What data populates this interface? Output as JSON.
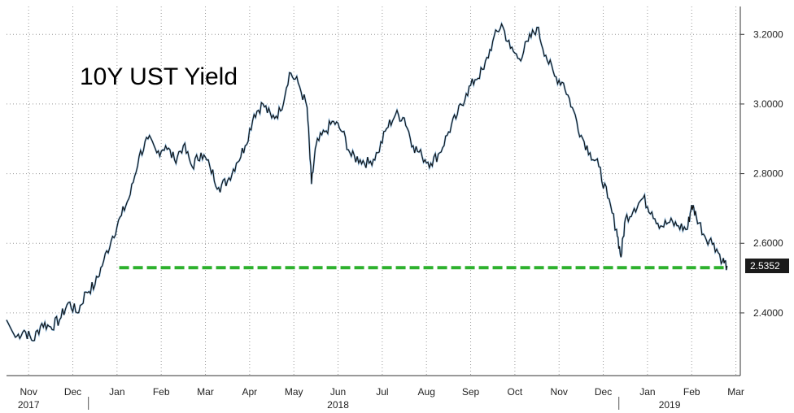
{
  "chart_data": {
    "type": "line",
    "title": "10Y UST Yield",
    "xlabel": "",
    "ylabel": "",
    "ylim": [
      2.22,
      3.28
    ],
    "y_ticks": [
      "3.2000",
      "3.0000",
      "2.8000",
      "2.6000",
      "2.4000"
    ],
    "x_months": [
      {
        "label": "Nov",
        "index": 0
      },
      {
        "label": "Dec",
        "index": 1
      },
      {
        "label": "Jan",
        "index": 2
      },
      {
        "label": "Feb",
        "index": 3
      },
      {
        "label": "Mar",
        "index": 4
      },
      {
        "label": "Apr",
        "index": 5
      },
      {
        "label": "May",
        "index": 6
      },
      {
        "label": "Jun",
        "index": 7
      },
      {
        "label": "Jul",
        "index": 8
      },
      {
        "label": "Aug",
        "index": 9
      },
      {
        "label": "Sep",
        "index": 10
      },
      {
        "label": "Oct",
        "index": 11
      },
      {
        "label": "Nov",
        "index": 12
      },
      {
        "label": "Dec",
        "index": 13
      },
      {
        "label": "Jan",
        "index": 14
      },
      {
        "label": "Feb",
        "index": 15
      },
      {
        "label": "Mar",
        "index": 16
      }
    ],
    "x_years": [
      {
        "label": "2017",
        "month_index": 0.5
      },
      {
        "label": "2018",
        "month_index": 7.5
      },
      {
        "label": "2019",
        "month_index": 15
      }
    ],
    "series": [
      {
        "values": [
          [
            0.0,
            2.38
          ],
          [
            0.2,
            2.33
          ],
          [
            0.4,
            2.35
          ],
          [
            0.6,
            2.32
          ],
          [
            0.8,
            2.37
          ],
          [
            1.0,
            2.36
          ],
          [
            1.2,
            2.38
          ],
          [
            1.4,
            2.43
          ],
          [
            1.6,
            2.4
          ],
          [
            1.8,
            2.46
          ],
          [
            2.0,
            2.48
          ],
          [
            2.2,
            2.55
          ],
          [
            2.4,
            2.62
          ],
          [
            2.6,
            2.68
          ],
          [
            2.8,
            2.74
          ],
          [
            3.0,
            2.85
          ],
          [
            3.2,
            2.9
          ],
          [
            3.4,
            2.86
          ],
          [
            3.6,
            2.88
          ],
          [
            3.8,
            2.84
          ],
          [
            4.0,
            2.88
          ],
          [
            4.2,
            2.82
          ],
          [
            4.4,
            2.86
          ],
          [
            4.6,
            2.82
          ],
          [
            4.8,
            2.76
          ],
          [
            5.0,
            2.78
          ],
          [
            5.2,
            2.83
          ],
          [
            5.4,
            2.88
          ],
          [
            5.6,
            2.97
          ],
          [
            5.8,
            3.0
          ],
          [
            6.0,
            2.96
          ],
          [
            6.2,
            2.98
          ],
          [
            6.4,
            3.09
          ],
          [
            6.6,
            3.06
          ],
          [
            6.8,
            2.99
          ],
          [
            6.9,
            2.77
          ],
          [
            7.0,
            2.88
          ],
          [
            7.2,
            2.92
          ],
          [
            7.4,
            2.95
          ],
          [
            7.6,
            2.92
          ],
          [
            7.8,
            2.85
          ],
          [
            8.0,
            2.84
          ],
          [
            8.2,
            2.83
          ],
          [
            8.4,
            2.86
          ],
          [
            8.6,
            2.93
          ],
          [
            8.8,
            2.97
          ],
          [
            9.0,
            2.96
          ],
          [
            9.2,
            2.88
          ],
          [
            9.4,
            2.85
          ],
          [
            9.6,
            2.83
          ],
          [
            9.8,
            2.86
          ],
          [
            10.0,
            2.92
          ],
          [
            10.2,
            2.97
          ],
          [
            10.4,
            3.03
          ],
          [
            10.6,
            3.07
          ],
          [
            10.8,
            3.1
          ],
          [
            11.0,
            3.18
          ],
          [
            11.2,
            3.23
          ],
          [
            11.4,
            3.16
          ],
          [
            11.6,
            3.13
          ],
          [
            11.8,
            3.18
          ],
          [
            12.0,
            3.22
          ],
          [
            12.2,
            3.14
          ],
          [
            12.4,
            3.08
          ],
          [
            12.6,
            3.06
          ],
          [
            12.8,
            2.99
          ],
          [
            13.0,
            2.91
          ],
          [
            13.2,
            2.86
          ],
          [
            13.4,
            2.82
          ],
          [
            13.6,
            2.73
          ],
          [
            13.8,
            2.64
          ],
          [
            13.9,
            2.56
          ],
          [
            14.0,
            2.67
          ],
          [
            14.2,
            2.7
          ],
          [
            14.4,
            2.73
          ],
          [
            14.6,
            2.69
          ],
          [
            14.8,
            2.65
          ],
          [
            15.0,
            2.66
          ],
          [
            15.2,
            2.65
          ],
          [
            15.4,
            2.64
          ],
          [
            15.5,
            2.71
          ],
          [
            15.6,
            2.68
          ],
          [
            15.8,
            2.62
          ],
          [
            16.0,
            2.6
          ],
          [
            16.2,
            2.55
          ],
          [
            16.3,
            2.5352
          ]
        ]
      }
    ],
    "support_level": 2.53,
    "last_value": "2.5352",
    "grid": true,
    "colors": {
      "line": "#111111",
      "accent_line": "#2b82c6",
      "support": "#2db12d",
      "badge_bg": "#1a1a1a",
      "grid": "#9a9a9a"
    }
  }
}
